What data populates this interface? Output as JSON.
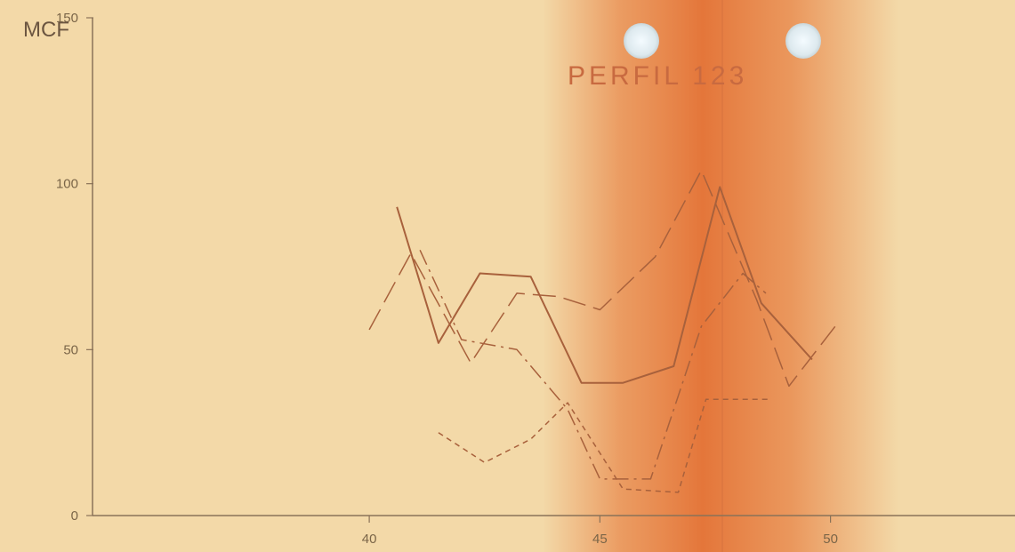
{
  "chart_data": {
    "type": "line",
    "title": "PERFIL 123",
    "xlabel": "",
    "ylabel": "MCF",
    "xlim": [
      34,
      54
    ],
    "ylim": [
      0,
      150
    ],
    "x_ticks": [
      "40",
      "45",
      "50"
    ],
    "y_ticks": [
      "0",
      "50",
      "100",
      "150"
    ],
    "grid": false,
    "legend": "none",
    "series": [
      {
        "style": "solid",
        "points": [
          [
            40.6,
            93
          ],
          [
            41.5,
            52
          ],
          [
            42.4,
            73
          ],
          [
            43.5,
            72
          ],
          [
            44.6,
            40
          ],
          [
            45.5,
            40
          ],
          [
            46.6,
            45
          ],
          [
            47.6,
            99
          ],
          [
            48.5,
            64
          ],
          [
            49.6,
            47
          ]
        ]
      },
      {
        "style": "long-dash",
        "points": [
          [
            40,
            56
          ],
          [
            40.9,
            79
          ],
          [
            42.2,
            46
          ],
          [
            43.2,
            67
          ],
          [
            44.1,
            66
          ],
          [
            45,
            62
          ],
          [
            46.2,
            78
          ],
          [
            47.2,
            104
          ],
          [
            48.4,
            65
          ],
          [
            49.1,
            39
          ],
          [
            50.1,
            57
          ]
        ]
      },
      {
        "style": "dash-dot",
        "points": [
          [
            41.1,
            80
          ],
          [
            42,
            53
          ],
          [
            43.2,
            50
          ],
          [
            44.3,
            32
          ],
          [
            45,
            11
          ],
          [
            46.1,
            11
          ],
          [
            47.2,
            57
          ],
          [
            48.1,
            73
          ],
          [
            48.6,
            67
          ]
        ]
      },
      {
        "style": "short-dash",
        "points": [
          [
            41.5,
            25
          ],
          [
            42.5,
            16
          ],
          [
            43.5,
            23
          ],
          [
            44.3,
            34
          ],
          [
            45.5,
            8
          ],
          [
            46.7,
            7
          ],
          [
            47.3,
            35
          ],
          [
            48.7,
            35
          ]
        ]
      }
    ]
  }
}
